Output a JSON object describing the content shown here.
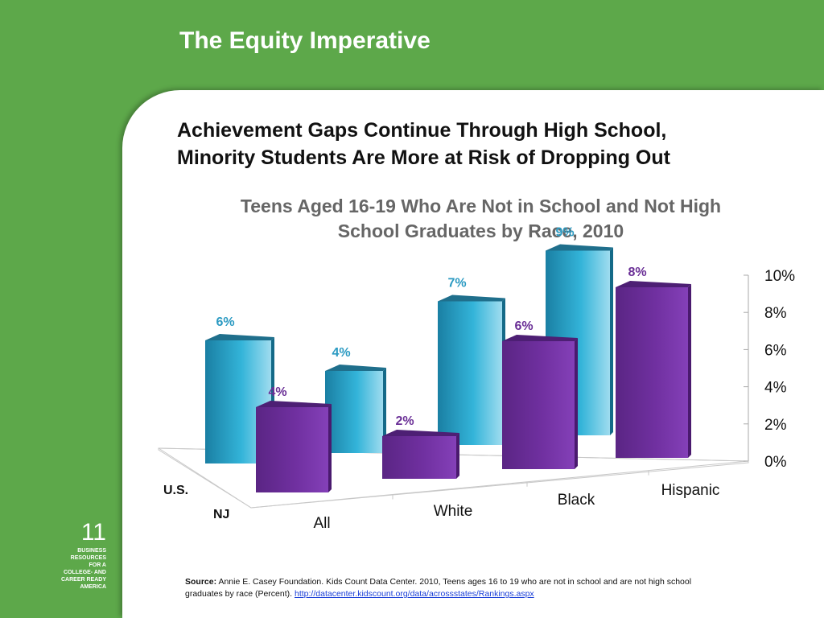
{
  "slide": {
    "title": "The Equity Imperative",
    "headline_line1": "Achievement Gaps Continue Through High School,",
    "headline_line2": "Minority Students Are More at Risk of Dropping Out",
    "page_number": "11",
    "brand_lines": [
      "BUSINESS",
      "RESOURCES",
      "FOR A",
      "COLLEGE- AND",
      "CAREER READY",
      "AMERICA"
    ],
    "source_label": "Source:",
    "source_text": "Annie E. Casey Foundation. Kids Count Data Center. 2010, Teens ages 16 to 19 who are not in school and are not high school graduates by race (Percent).",
    "source_link": "http://datacenter.kidscount.org/data/acrossstates/Rankings.aspx"
  },
  "colors": {
    "background_green": "#5da84a",
    "us_bar": "#2ba3c7",
    "nj_bar": "#6a2f96",
    "us_label": "#2b9ac2",
    "nj_label": "#6a2f96"
  },
  "chart_data": {
    "type": "bar",
    "title_line1": "Teens Aged 16-19 Who Are Not in School and Not High",
    "title_line2": "School Graduates by Race, 2010",
    "categories": [
      "All",
      "White",
      "Black",
      "Hispanic"
    ],
    "series": [
      {
        "name": "U.S.",
        "values": [
          6,
          4,
          7,
          9
        ],
        "labels": [
          "6%",
          "4%",
          "7%",
          "9%"
        ]
      },
      {
        "name": "NJ",
        "values": [
          4,
          2,
          6,
          8
        ],
        "labels": [
          "4%",
          "2%",
          "6%",
          "8%"
        ]
      }
    ],
    "yticks": [
      "0%",
      "2%",
      "4%",
      "6%",
      "8%",
      "10%"
    ],
    "ylim": [
      0,
      10
    ],
    "unit": "%",
    "style": "3d-column"
  }
}
